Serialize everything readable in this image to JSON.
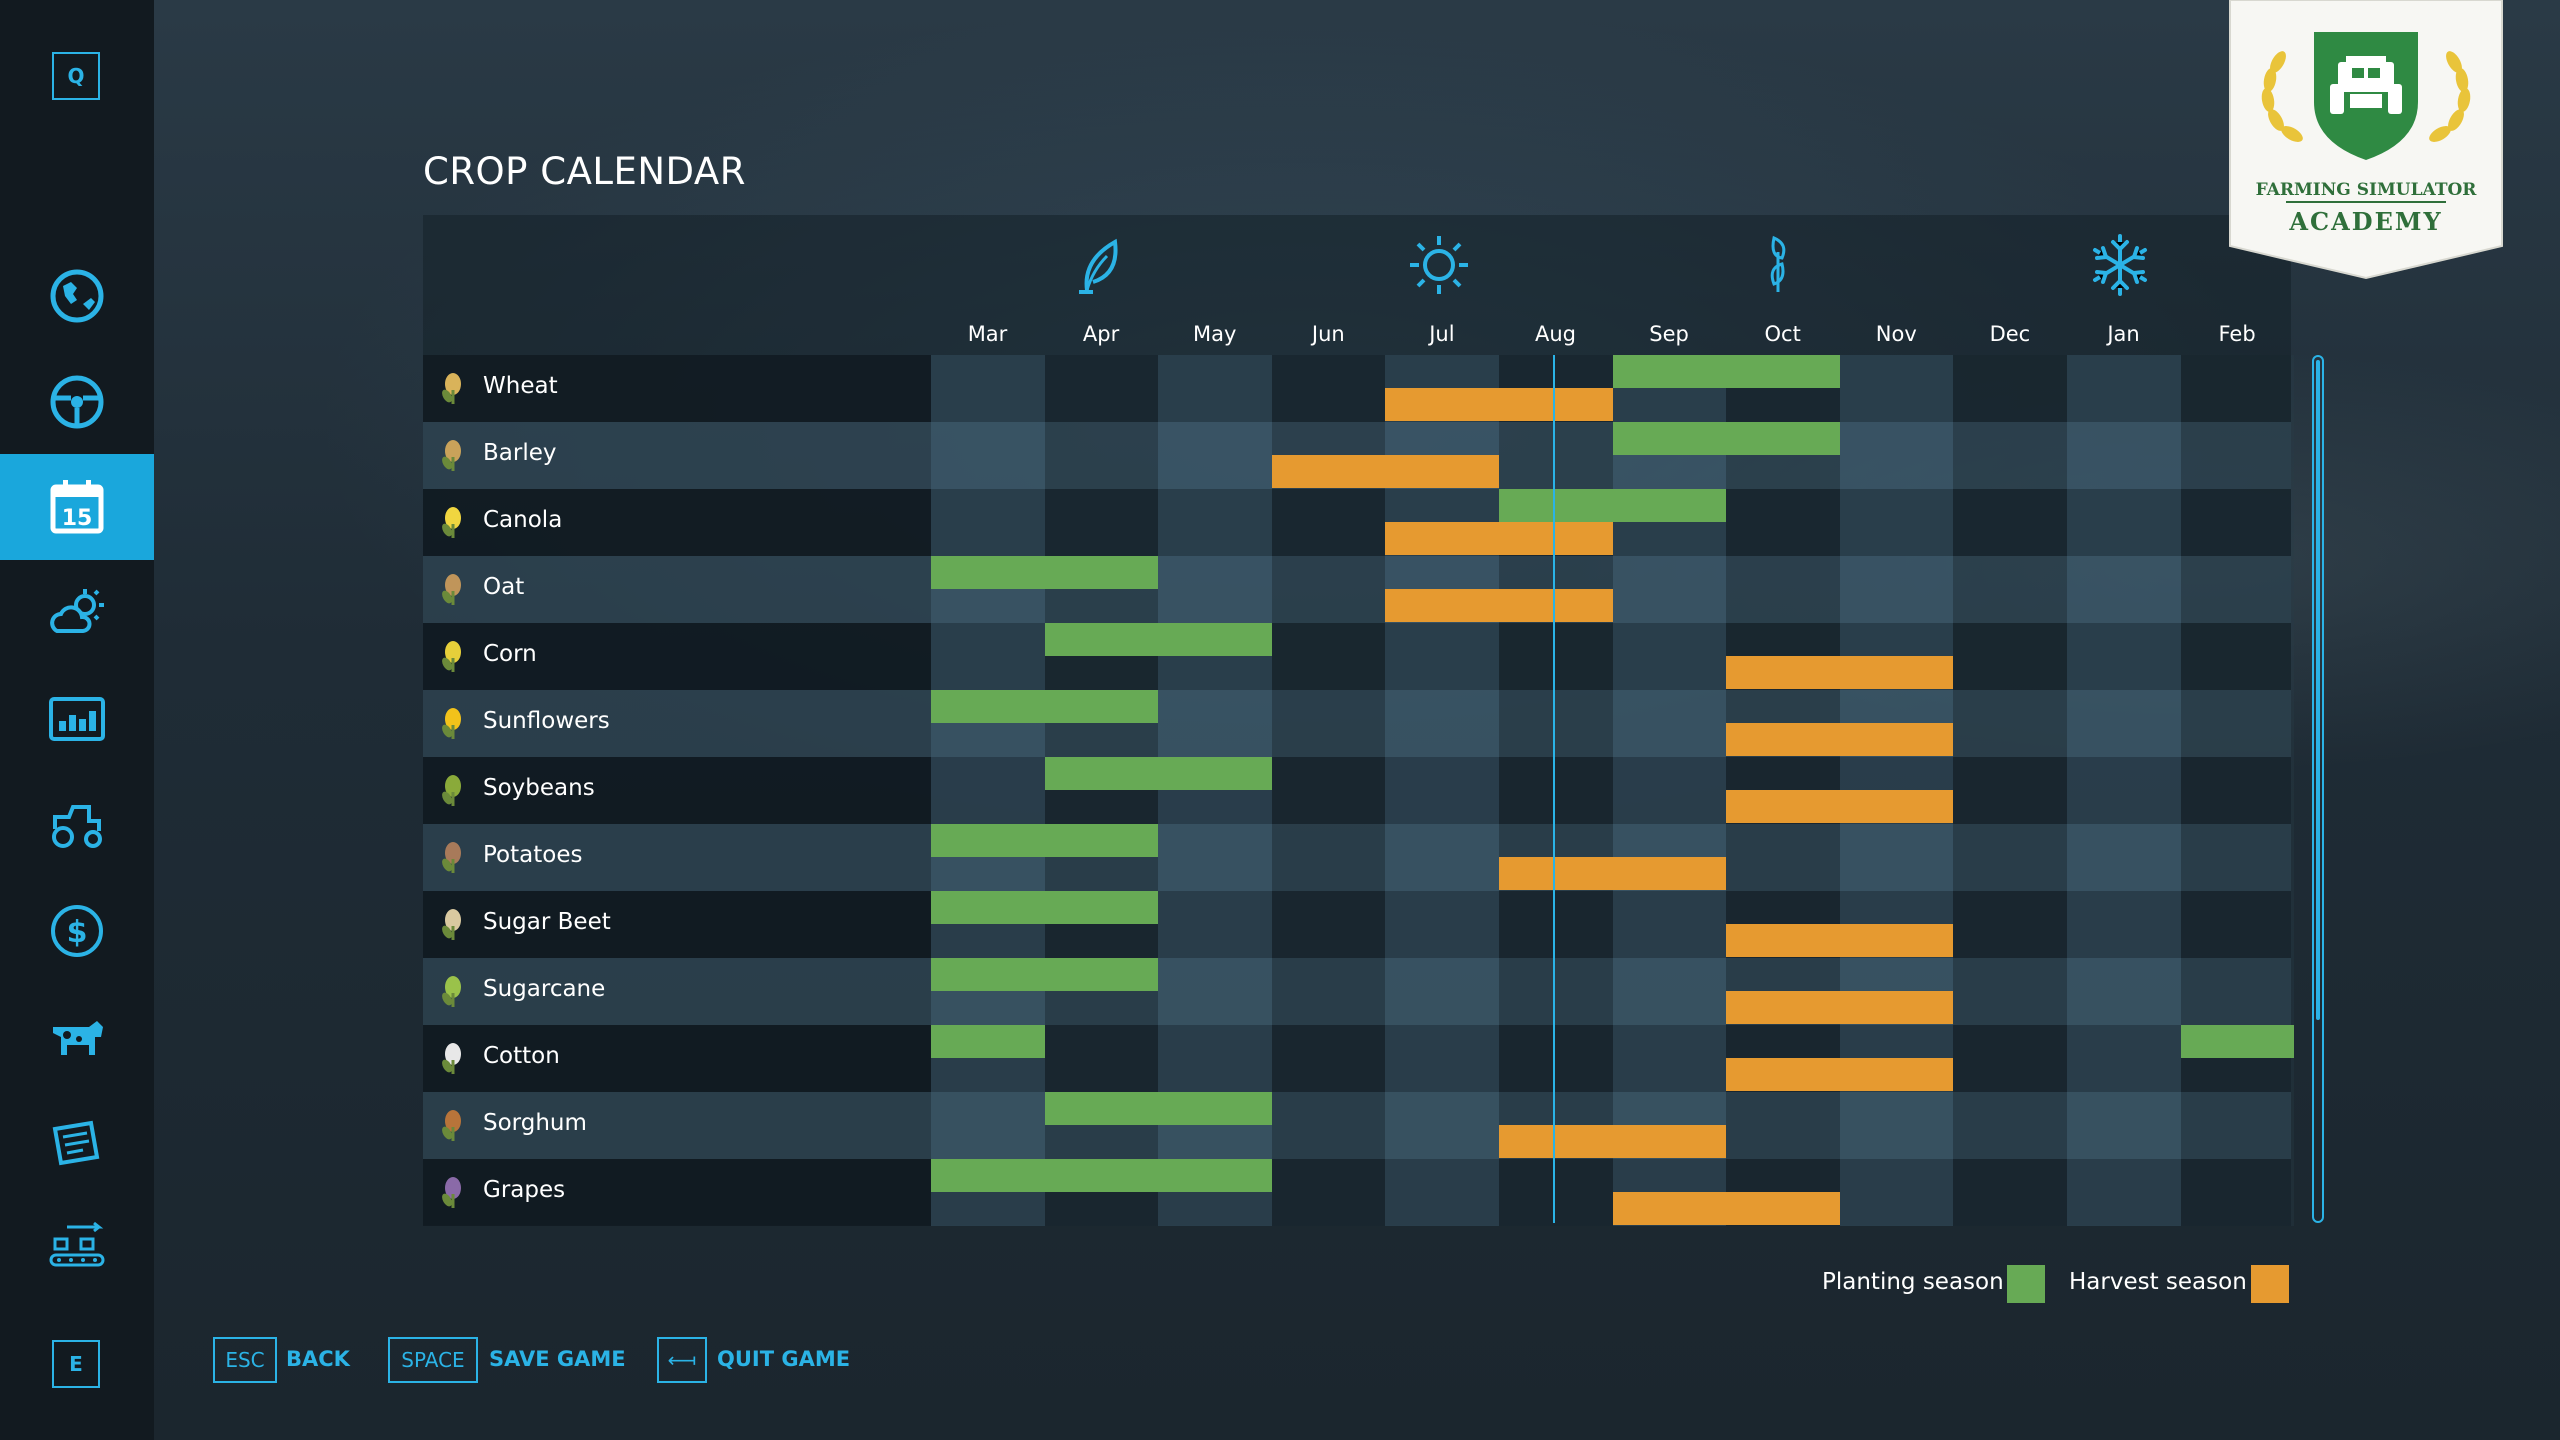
{
  "title": "CROP CALENDAR",
  "sidebar": {
    "top_key": "Q",
    "bottom_key": "E",
    "items": [
      {
        "icon": "map-icon",
        "active": false
      },
      {
        "icon": "steering-wheel-icon",
        "active": false
      },
      {
        "icon": "calendar-icon",
        "label": "15",
        "active": true
      },
      {
        "icon": "weather-icon",
        "active": false
      },
      {
        "icon": "statistics-icon",
        "active": false
      },
      {
        "icon": "tractor-icon",
        "active": false
      },
      {
        "icon": "finance-icon",
        "active": false
      },
      {
        "icon": "animals-icon",
        "active": false
      },
      {
        "icon": "contracts-icon",
        "active": false
      },
      {
        "icon": "production-icon",
        "active": false
      }
    ]
  },
  "calendar": {
    "months": [
      "Mar",
      "Apr",
      "May",
      "Jun",
      "Jul",
      "Aug",
      "Sep",
      "Oct",
      "Nov",
      "Dec",
      "Jan",
      "Feb"
    ],
    "season_icons": [
      "spring-leaf-icon",
      "summer-sun-icon",
      "autumn-leaves-icon",
      "winter-snowflake-icon"
    ],
    "current_month": "Aug",
    "crops": [
      {
        "name": "Wheat",
        "icon": "wheat-icon",
        "plant": [
          [
            "Sep",
            "Oct"
          ]
        ],
        "harvest": [
          [
            "Jul",
            "Aug"
          ]
        ]
      },
      {
        "name": "Barley",
        "icon": "barley-icon",
        "plant": [
          [
            "Sep",
            "Oct"
          ]
        ],
        "harvest": [
          [
            "Jun",
            "Jul"
          ]
        ]
      },
      {
        "name": "Canola",
        "icon": "canola-icon",
        "plant": [
          [
            "Aug",
            "Sep"
          ]
        ],
        "harvest": [
          [
            "Jul",
            "Aug"
          ]
        ]
      },
      {
        "name": "Oat",
        "icon": "oat-icon",
        "plant": [
          [
            "Mar",
            "Apr"
          ]
        ],
        "harvest": [
          [
            "Jul",
            "Aug"
          ]
        ]
      },
      {
        "name": "Corn",
        "icon": "corn-icon",
        "plant": [
          [
            "Apr",
            "May"
          ]
        ],
        "harvest": [
          [
            "Oct",
            "Nov"
          ]
        ]
      },
      {
        "name": "Sunflowers",
        "icon": "sunflower-icon",
        "plant": [
          [
            "Mar",
            "Apr"
          ]
        ],
        "harvest": [
          [
            "Oct",
            "Nov"
          ]
        ]
      },
      {
        "name": "Soybeans",
        "icon": "soybean-icon",
        "plant": [
          [
            "Apr",
            "May"
          ]
        ],
        "harvest": [
          [
            "Oct",
            "Nov"
          ]
        ]
      },
      {
        "name": "Potatoes",
        "icon": "potato-icon",
        "plant": [
          [
            "Mar",
            "Apr"
          ]
        ],
        "harvest": [
          [
            "Aug",
            "Sep"
          ]
        ]
      },
      {
        "name": "Sugar Beet",
        "icon": "sugar-beet-icon",
        "plant": [
          [
            "Mar",
            "Apr"
          ]
        ],
        "harvest": [
          [
            "Oct",
            "Nov"
          ]
        ]
      },
      {
        "name": "Sugarcane",
        "icon": "sugarcane-icon",
        "plant": [
          [
            "Mar",
            "Apr"
          ]
        ],
        "harvest": [
          [
            "Oct",
            "Nov"
          ]
        ]
      },
      {
        "name": "Cotton",
        "icon": "cotton-icon",
        "plant": [
          [
            "Mar",
            "Mar"
          ],
          [
            "Feb",
            "Feb"
          ]
        ],
        "harvest": [
          [
            "Oct",
            "Nov"
          ]
        ]
      },
      {
        "name": "Sorghum",
        "icon": "sorghum-icon",
        "plant": [
          [
            "Apr",
            "May"
          ]
        ],
        "harvest": [
          [
            "Aug",
            "Sep"
          ]
        ]
      },
      {
        "name": "Grapes",
        "icon": "grapes-icon",
        "plant": [
          [
            "Mar",
            "May"
          ]
        ],
        "harvest": [
          [
            "Sep",
            "Oct"
          ]
        ]
      }
    ]
  },
  "legend": {
    "planting_label": "Planting season",
    "harvest_label": "Harvest season",
    "planting_color": "#67aa55",
    "harvest_color": "#e69a30"
  },
  "footer": {
    "back_key": "ESC",
    "back_label": "BACK",
    "save_key": "SPACE",
    "save_label": "SAVE GAME",
    "quit_key": "⟻",
    "quit_label": "QUIT GAME"
  },
  "badge": {
    "line1": "FARMING SIMULATOR",
    "line2": "ACADEMY"
  },
  "colors": {
    "accent": "#2bb3e6",
    "sidebar_active": "#1aa7dc"
  }
}
